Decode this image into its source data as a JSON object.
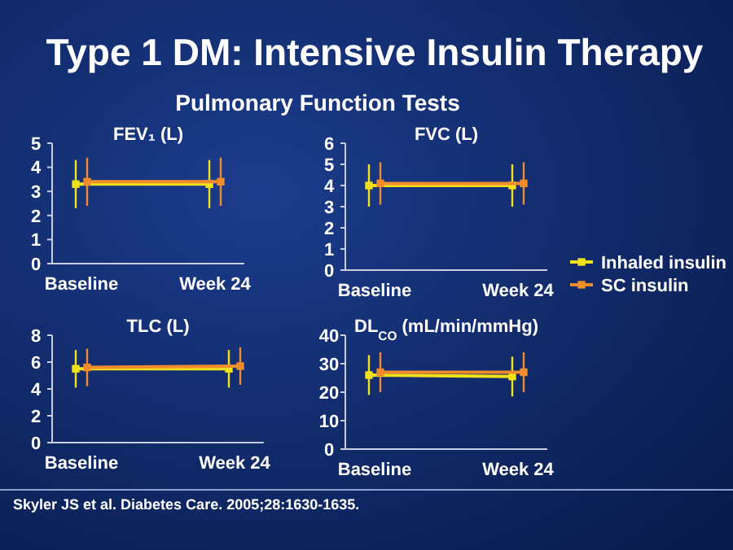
{
  "chart_data": [
    {
      "type": "line",
      "title": "Type 1 DM: Intensive Insulin Therapy",
      "subtitle": "Pulmonary Function Tests",
      "ylabel": "FEV₁ (L)",
      "categories": [
        "Baseline",
        "Week 24"
      ],
      "ylim": [
        0,
        5
      ],
      "yticks": [
        0,
        1,
        2,
        3,
        4,
        5
      ],
      "marker": "square",
      "line_style": "solid",
      "legend": false,
      "grid": false,
      "series": [
        {
          "color": "#f2e21a",
          "values": [
            3.3,
            3.3
          ],
          "errors": [
            1,
            1
          ]
        },
        {
          "color": "#f08c2c",
          "values": [
            3.4,
            3.4
          ],
          "errors": [
            1,
            1
          ]
        }
      ]
    },
    {
      "type": "line",
      "ylabel": "FVC (L)",
      "categories": [
        "Baseline",
        "Week 24"
      ],
      "ylim": [
        0,
        6
      ],
      "yticks": [
        0,
        1,
        2,
        3,
        4,
        5,
        6
      ],
      "marker": "square",
      "line_style": "solid",
      "legend": "right",
      "grid": false,
      "series": [
        {
          "name": "Inhaled insulin",
          "color": "#f2e21a",
          "values": [
            4.0,
            4.0
          ],
          "errors": [
            1,
            1
          ]
        },
        {
          "name": "SC insulin",
          "color": "#f08c2c",
          "values": [
            4.1,
            4.1
          ],
          "errors": [
            1,
            1
          ]
        }
      ]
    },
    {
      "type": "line",
      "ylabel": "TLC (L)",
      "categories": [
        "Baseline",
        "Week 24"
      ],
      "ylim": [
        0,
        8
      ],
      "yticks": [
        0,
        2,
        4,
        6,
        8
      ],
      "marker": "square",
      "line_style": "solid",
      "legend": false,
      "grid": false,
      "series": [
        {
          "color": "#f2e21a",
          "values": [
            5.5,
            5.5
          ],
          "errors": [
            1.4,
            1.4
          ]
        },
        {
          "color": "#f08c2c",
          "values": [
            5.6,
            5.7
          ],
          "errors": [
            1.4,
            1.4
          ]
        }
      ]
    },
    {
      "type": "line",
      "ylabel": "DL$_{CO}$ (mL/min/mmHg)",
      "categories": [
        "Baseline",
        "Week 24"
      ],
      "ylim": [
        0,
        40
      ],
      "yticks": [
        0,
        10,
        20,
        30,
        40
      ],
      "marker": "square",
      "line_style": "solid",
      "legend": false,
      "grid": false,
      "annotations": [
        "Skyler JS et al. Diabetes Care. 2005;28:1630-1635."
      ],
      "series": [
        {
          "color": "#f2e21a",
          "values": [
            26,
            25.5
          ],
          "errors": [
            7,
            7
          ]
        },
        {
          "color": "#f08c2c",
          "values": [
            27,
            27
          ],
          "errors": [
            7,
            7
          ]
        }
      ]
    }
  ]
}
